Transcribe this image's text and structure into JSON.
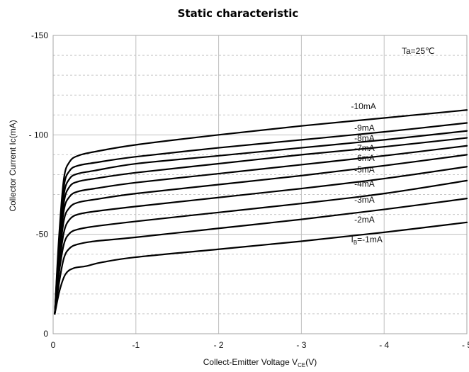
{
  "chart_data": {
    "type": "line",
    "title": "Static characteristic",
    "annotation": "Ta=25℃",
    "xlabel": {
      "main": "Collect-Emitter Voltage  V",
      "sub": "CE",
      "suffix": "(V)"
    },
    "ylabel": "Collector Current  Ic(mA)",
    "xlim": [
      0,
      -5
    ],
    "ylim": [
      0,
      -150
    ],
    "x_ticks": [
      {
        "value": 0,
        "label": "0"
      },
      {
        "value": -1,
        "label": "-1"
      },
      {
        "value": -2,
        "label": "- 2"
      },
      {
        "value": -3,
        "label": "- 3"
      },
      {
        "value": -4,
        "label": "- 4"
      },
      {
        "value": -5,
        "label": "- 5"
      }
    ],
    "y_ticks": [
      {
        "value": 0,
        "label": "0"
      },
      {
        "value": -50,
        "label": "-50"
      },
      {
        "value": -100,
        "label": "- 100"
      },
      {
        "value": -150,
        "label": "-150"
      }
    ],
    "minor_y_grid": [
      -10,
      -20,
      -30,
      -40,
      -60,
      -70,
      -80,
      -90,
      -110,
      -120,
      -130,
      -140
    ],
    "grid": true,
    "colors": {
      "line": "#000000",
      "grid_major": "#bfbfbf",
      "grid_minor": "#c8c8c8",
      "frame": "#a6a6a6"
    },
    "series": [
      {
        "name": "IB=-1mA",
        "label_main": "I",
        "label_sub": "B",
        "label_rest": "=-1mA",
        "label_x": -3.6,
        "label_y": -46,
        "points": [
          [
            -0.02,
            -10
          ],
          [
            -0.08,
            -22
          ],
          [
            -0.15,
            -30
          ],
          [
            -0.25,
            -33
          ],
          [
            -0.4,
            -34
          ],
          [
            -0.6,
            -36
          ],
          [
            -1,
            -38.5
          ],
          [
            -2,
            -42.5
          ],
          [
            -3,
            -46.5
          ],
          [
            -4,
            -51
          ],
          [
            -5,
            -56
          ]
        ]
      },
      {
        "name": "-2mA",
        "label_x": -3.64,
        "label_y": -56,
        "points": [
          [
            -0.02,
            -10
          ],
          [
            -0.07,
            -25
          ],
          [
            -0.13,
            -38
          ],
          [
            -0.2,
            -43
          ],
          [
            -0.3,
            -45
          ],
          [
            -0.5,
            -46.5
          ],
          [
            -1,
            -48.5
          ],
          [
            -2,
            -53
          ],
          [
            -3,
            -57.5
          ],
          [
            -4,
            -62.5
          ],
          [
            -5,
            -68
          ]
        ]
      },
      {
        "name": "-3mA",
        "label_x": -3.64,
        "label_y": -66,
        "points": [
          [
            -0.02,
            -10
          ],
          [
            -0.07,
            -30
          ],
          [
            -0.13,
            -45
          ],
          [
            -0.2,
            -50.5
          ],
          [
            -0.3,
            -52.5
          ],
          [
            -0.5,
            -54
          ],
          [
            -1,
            -56.5
          ],
          [
            -2,
            -61
          ],
          [
            -3,
            -65.5
          ],
          [
            -4,
            -70.5
          ],
          [
            -5,
            -77
          ]
        ]
      },
      {
        "name": "-4mA",
        "label_x": -3.64,
        "label_y": -74,
        "points": [
          [
            -0.02,
            -10
          ],
          [
            -0.07,
            -33
          ],
          [
            -0.13,
            -51
          ],
          [
            -0.2,
            -57.5
          ],
          [
            -0.3,
            -60
          ],
          [
            -0.5,
            -61.5
          ],
          [
            -1,
            -64
          ],
          [
            -2,
            -68.5
          ],
          [
            -3,
            -73
          ],
          [
            -4,
            -78
          ],
          [
            -5,
            -84
          ]
        ]
      },
      {
        "name": "-5mA",
        "label_x": -3.64,
        "label_y": -81,
        "points": [
          [
            -0.02,
            -10
          ],
          [
            -0.07,
            -36
          ],
          [
            -0.13,
            -57
          ],
          [
            -0.2,
            -63.5
          ],
          [
            -0.3,
            -66
          ],
          [
            -0.5,
            -67.5
          ],
          [
            -1,
            -70.5
          ],
          [
            -2,
            -75
          ],
          [
            -3,
            -79.5
          ],
          [
            -4,
            -84.5
          ],
          [
            -5,
            -90
          ]
        ]
      },
      {
        "name": "-6mA",
        "label_x": -3.64,
        "label_y": -87,
        "points": [
          [
            -0.02,
            -10
          ],
          [
            -0.07,
            -39
          ],
          [
            -0.13,
            -62
          ],
          [
            -0.2,
            -69
          ],
          [
            -0.3,
            -71.5
          ],
          [
            -0.5,
            -73
          ],
          [
            -1,
            -76
          ],
          [
            -2,
            -80.5
          ],
          [
            -3,
            -85
          ],
          [
            -4,
            -89.5
          ],
          [
            -5,
            -94.5
          ]
        ]
      },
      {
        "name": "-7mA",
        "label_x": -3.64,
        "label_y": -92,
        "points": [
          [
            -0.02,
            -10
          ],
          [
            -0.07,
            -41
          ],
          [
            -0.13,
            -66
          ],
          [
            -0.2,
            -74
          ],
          [
            -0.3,
            -76.5
          ],
          [
            -0.5,
            -78
          ],
          [
            -1,
            -81
          ],
          [
            -2,
            -85.5
          ],
          [
            -3,
            -90
          ],
          [
            -4,
            -94
          ],
          [
            -5,
            -98.5
          ]
        ]
      },
      {
        "name": "-8mA",
        "label_x": -3.64,
        "label_y": -97,
        "points": [
          [
            -0.02,
            -10
          ],
          [
            -0.07,
            -43
          ],
          [
            -0.13,
            -70
          ],
          [
            -0.2,
            -78
          ],
          [
            -0.3,
            -80.5
          ],
          [
            -0.5,
            -82
          ],
          [
            -1,
            -85.5
          ],
          [
            -2,
            -89.5
          ],
          [
            -3,
            -93.5
          ],
          [
            -4,
            -97.5
          ],
          [
            -5,
            -102
          ]
        ]
      },
      {
        "name": "-9mA",
        "label_x": -3.64,
        "label_y": -102,
        "points": [
          [
            -0.02,
            -10
          ],
          [
            -0.07,
            -45
          ],
          [
            -0.13,
            -74
          ],
          [
            -0.2,
            -82
          ],
          [
            -0.3,
            -84.5
          ],
          [
            -0.5,
            -86
          ],
          [
            -1,
            -89
          ],
          [
            -2,
            -93.5
          ],
          [
            -3,
            -97.5
          ],
          [
            -4,
            -101.5
          ],
          [
            -5,
            -106
          ]
        ]
      },
      {
        "name": "-10mA",
        "label_x": -3.6,
        "label_y": -113,
        "points": [
          [
            -0.02,
            -10
          ],
          [
            -0.07,
            -48
          ],
          [
            -0.13,
            -78
          ],
          [
            -0.2,
            -86.5
          ],
          [
            -0.3,
            -89.5
          ],
          [
            -0.5,
            -91.5
          ],
          [
            -1,
            -95
          ],
          [
            -2,
            -100
          ],
          [
            -3,
            -104.5
          ],
          [
            -4,
            -108.5
          ],
          [
            -5,
            -112.5
          ]
        ]
      }
    ]
  }
}
